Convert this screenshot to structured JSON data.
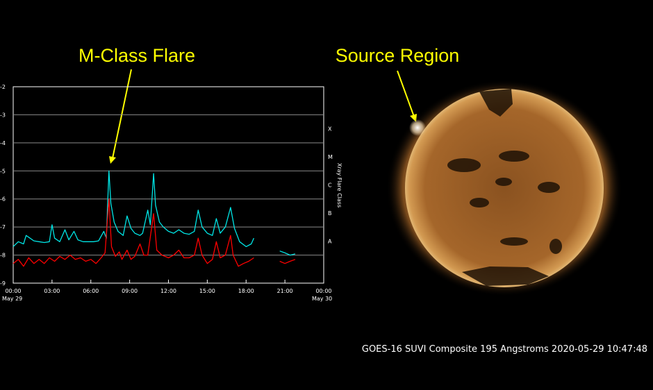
{
  "annotations": {
    "flare_label": "M-Class Flare",
    "region_label": "Source Region"
  },
  "caption": "GOES-16 SUVI Composite 195 Angstroms 2020-05-29 10:47:48",
  "colors": {
    "background": "#000000",
    "annotation": "#ffff00",
    "long_channel": "#00e5e5",
    "short_channel": "#ff0000",
    "sun": "#b5732b"
  },
  "chart_data": {
    "type": "line",
    "x_tick_labels": [
      "00:00",
      "03:00",
      "06:00",
      "09:00",
      "12:00",
      "15:00",
      "18:00",
      "21:00",
      "00:00"
    ],
    "x_date_labels": [
      "May 29",
      "May 30"
    ],
    "xlim": [
      "2020-05-29 00:00",
      "2020-05-30 00:00"
    ],
    "y_scale": "log",
    "ylim": [
      1e-09,
      0.01
    ],
    "y_tick_labels": [
      "-2",
      "-3",
      "-4",
      "-5",
      "-6",
      "-7",
      "-8",
      "-9"
    ],
    "y2label": "Xray Flare Class",
    "flare_class_labels": [
      "X",
      "M",
      "C",
      "B",
      "A"
    ],
    "grid": "horizontal",
    "series": [
      {
        "color": "#00e5e5",
        "points": [
          [
            0.0,
            2e-08
          ],
          [
            0.4,
            3e-08
          ],
          [
            0.8,
            2.5e-08
          ],
          [
            1.0,
            5e-08
          ],
          [
            1.3,
            4e-08
          ],
          [
            1.6,
            3.2e-08
          ],
          [
            2.0,
            3e-08
          ],
          [
            2.4,
            2.8e-08
          ],
          [
            2.8,
            3e-08
          ],
          [
            3.0,
            1.2e-07
          ],
          [
            3.2,
            4e-08
          ],
          [
            3.6,
            3e-08
          ],
          [
            4.0,
            8e-08
          ],
          [
            4.3,
            3.5e-08
          ],
          [
            4.7,
            7e-08
          ],
          [
            5.0,
            3.5e-08
          ],
          [
            5.4,
            3e-08
          ],
          [
            5.8,
            3e-08
          ],
          [
            6.2,
            3e-08
          ],
          [
            6.6,
            3.2e-08
          ],
          [
            7.0,
            7e-08
          ],
          [
            7.2,
            4e-08
          ],
          [
            7.4,
            1e-05
          ],
          [
            7.55,
            7e-07
          ],
          [
            7.8,
            1.5e-07
          ],
          [
            8.1,
            7e-08
          ],
          [
            8.5,
            5e-08
          ],
          [
            8.8,
            2.5e-07
          ],
          [
            9.1,
            9e-08
          ],
          [
            9.4,
            6e-08
          ],
          [
            9.8,
            5e-08
          ],
          [
            10.0,
            6e-08
          ],
          [
            10.4,
            4e-07
          ],
          [
            10.6,
            1.2e-07
          ],
          [
            10.85,
            8e-06
          ],
          [
            11.0,
            6e-07
          ],
          [
            11.3,
            1.5e-07
          ],
          [
            11.6,
            1e-07
          ],
          [
            12.0,
            7e-08
          ],
          [
            12.4,
            6e-08
          ],
          [
            12.8,
            8e-08
          ],
          [
            13.2,
            6e-08
          ],
          [
            13.6,
            5.5e-08
          ],
          [
            14.0,
            7e-08
          ],
          [
            14.3,
            4e-07
          ],
          [
            14.6,
            1e-07
          ],
          [
            15.0,
            6e-08
          ],
          [
            15.4,
            5e-08
          ],
          [
            15.7,
            2e-07
          ],
          [
            16.0,
            6e-08
          ],
          [
            16.4,
            1e-07
          ],
          [
            16.8,
            5e-07
          ],
          [
            17.1,
            9e-08
          ],
          [
            17.5,
            3e-08
          ],
          [
            18.0,
            2e-08
          ],
          [
            18.4,
            2.5e-08
          ],
          [
            18.6,
            4e-08
          ],
          null,
          [
            20.6,
            1.4e-08
          ],
          [
            21.0,
            1.2e-08
          ],
          [
            21.4,
            1e-08
          ],
          [
            21.8,
            1.1e-08
          ]
        ]
      },
      {
        "color": "#ff0000",
        "points": [
          [
            0.0,
            5e-09
          ],
          [
            0.4,
            7e-09
          ],
          [
            0.8,
            4e-09
          ],
          [
            1.2,
            8e-09
          ],
          [
            1.6,
            5e-09
          ],
          [
            2.0,
            7e-09
          ],
          [
            2.4,
            5e-09
          ],
          [
            2.8,
            8e-09
          ],
          [
            3.2,
            6e-09
          ],
          [
            3.6,
            9e-09
          ],
          [
            4.0,
            7e-09
          ],
          [
            4.4,
            1e-08
          ],
          [
            4.8,
            7e-09
          ],
          [
            5.2,
            8e-09
          ],
          [
            5.6,
            6e-09
          ],
          [
            6.0,
            7e-09
          ],
          [
            6.4,
            5e-09
          ],
          [
            6.8,
            8e-09
          ],
          [
            7.1,
            1.2e-08
          ],
          [
            7.4,
            1e-06
          ],
          [
            7.6,
            2e-08
          ],
          [
            7.9,
            9e-09
          ],
          [
            8.2,
            1.3e-08
          ],
          [
            8.4,
            7e-09
          ],
          [
            8.8,
            1.5e-08
          ],
          [
            9.1,
            7e-09
          ],
          [
            9.4,
            9e-09
          ],
          [
            9.8,
            2.5e-08
          ],
          [
            10.1,
            1e-08
          ],
          [
            10.4,
            1e-08
          ],
          [
            10.85,
            3e-07
          ],
          [
            11.1,
            1.5e-08
          ],
          [
            11.5,
            1e-08
          ],
          [
            12.0,
            8e-09
          ],
          [
            12.4,
            1e-08
          ],
          [
            12.8,
            1.5e-08
          ],
          [
            13.2,
            8e-09
          ],
          [
            13.6,
            8e-09
          ],
          [
            14.0,
            1e-08
          ],
          [
            14.3,
            4e-08
          ],
          [
            14.6,
            1e-08
          ],
          [
            15.0,
            5e-09
          ],
          [
            15.4,
            7e-09
          ],
          [
            15.7,
            3e-08
          ],
          [
            16.0,
            8e-09
          ],
          [
            16.4,
            1e-08
          ],
          [
            16.8,
            5e-08
          ],
          [
            17.0,
            1e-08
          ],
          [
            17.4,
            4e-09
          ],
          [
            17.8,
            5e-09
          ],
          [
            18.2,
            6e-09
          ],
          [
            18.6,
            8e-09
          ],
          null,
          [
            20.6,
            6e-09
          ],
          [
            21.0,
            5e-09
          ],
          [
            21.4,
            6e-09
          ],
          [
            21.8,
            7e-09
          ]
        ]
      }
    ]
  }
}
